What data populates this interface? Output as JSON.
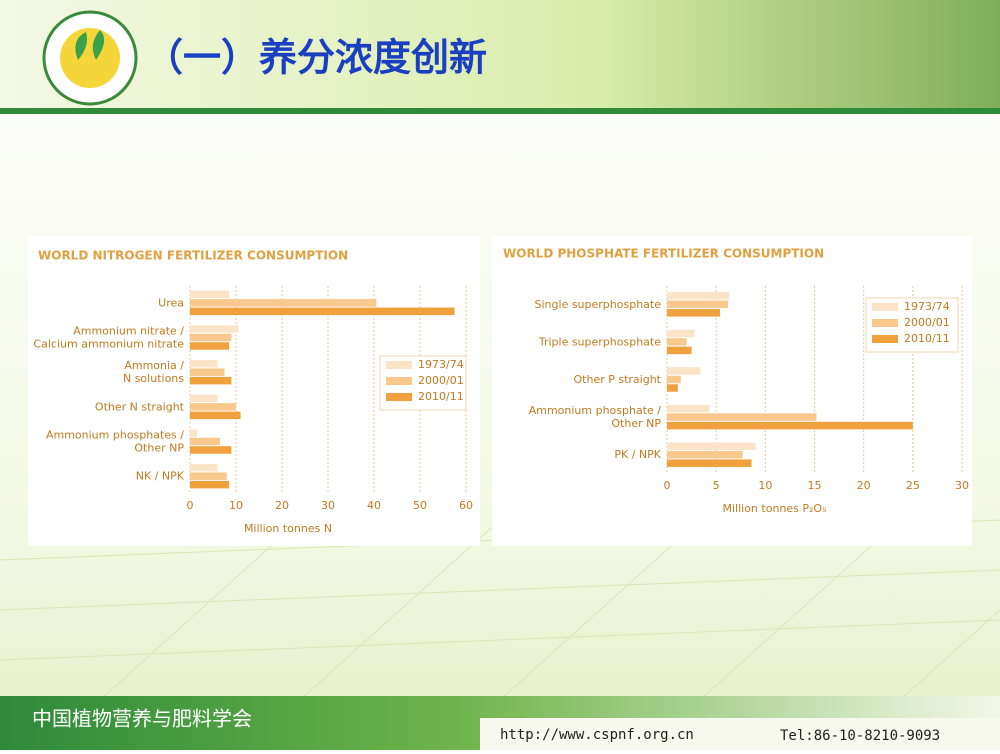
{
  "header": {
    "title": "（一）养分浓度创新"
  },
  "footer": {
    "org": "中国植物营养与肥料学会",
    "url": "http://www.cspnf.org.cn",
    "tel": "Tel:86-10-8210-9093"
  },
  "chart_data": [
    {
      "type": "hbar",
      "title": "WORLD NITROGEN FERTILIZER CONSUMPTION",
      "categories": [
        "Urea",
        "Ammonium nitrate /\nCalcium ammonium nitrate",
        "Ammonia /\nN solutions",
        "Other N straight",
        "Ammonium phosphates /\nOther NP",
        "NK / NPK"
      ],
      "series": [
        {
          "name": "1973/74",
          "color": "#fbe3c8",
          "values": [
            8.5,
            10.5,
            6,
            6,
            1.5,
            6
          ]
        },
        {
          "name": "2000/01",
          "color": "#f8c88c",
          "values": [
            40.5,
            9,
            7.5,
            10,
            6.5,
            8
          ]
        },
        {
          "name": "2010/11",
          "color": "#f0a03c",
          "values": [
            57.5,
            8.5,
            9,
            11,
            9,
            8.5
          ]
        }
      ],
      "xlim": [
        0,
        60
      ],
      "xticks": [
        0,
        10,
        20,
        30,
        40,
        50,
        60
      ],
      "xlabel": "Million tonnes N",
      "grid": true,
      "legend": "right"
    },
    {
      "type": "hbar",
      "title": "WORLD PHOSPHATE FERTILIZER CONSUMPTION",
      "categories": [
        "Single superphosphate",
        "Triple superphosphate",
        "Other P straight",
        "Ammonium phosphate /\nOther NP",
        "PK / NPK"
      ],
      "series": [
        {
          "name": "1973/74",
          "color": "#fbe3c8",
          "values": [
            6.3,
            2.8,
            3.4,
            4.3,
            9
          ]
        },
        {
          "name": "2000/01",
          "color": "#f8c88c",
          "values": [
            6.2,
            2,
            1.4,
            15.2,
            7.7
          ]
        },
        {
          "name": "2010/11",
          "color": "#f0a03c",
          "values": [
            5.4,
            2.5,
            1.1,
            25,
            8.6
          ]
        }
      ],
      "xlim": [
        0,
        30
      ],
      "xticks": [
        0,
        5,
        10,
        15,
        20,
        25,
        30
      ],
      "xlabel": "Million tonnes P₂O₅",
      "grid": true,
      "legend": "upper right"
    }
  ]
}
